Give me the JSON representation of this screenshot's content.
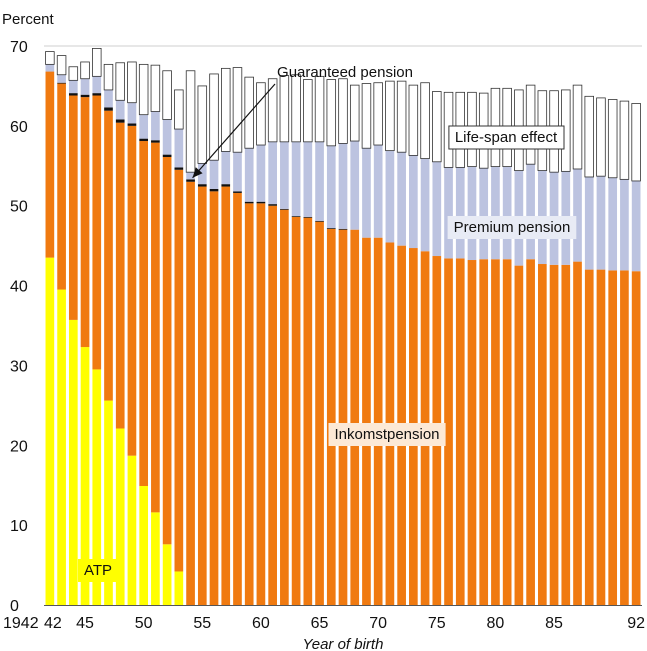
{
  "chart_data": {
    "type": "bar",
    "stacked": true,
    "ylabel": "Percent",
    "xlabel": "Year of birth",
    "ylim": [
      0,
      70
    ],
    "y_ticks": [
      0,
      10,
      20,
      30,
      40,
      50,
      60,
      70
    ],
    "x_tick_labels": [
      {
        "year": 1942,
        "label": "1942"
      },
      {
        "year": 1943,
        "label": "42"
      },
      {
        "year": 1945,
        "label": "45"
      },
      {
        "year": 1950,
        "label": "50"
      },
      {
        "year": 1955,
        "label": "55"
      },
      {
        "year": 1960,
        "label": "60"
      },
      {
        "year": 1965,
        "label": "65"
      },
      {
        "year": 1970,
        "label": "70"
      },
      {
        "year": 1975,
        "label": "75"
      },
      {
        "year": 1980,
        "label": "80"
      },
      {
        "year": 1985,
        "label": "85"
      },
      {
        "year": 1992,
        "label": "92"
      }
    ],
    "x": [
      1942,
      1943,
      1944,
      1945,
      1946,
      1947,
      1948,
      1949,
      1950,
      1951,
      1952,
      1953,
      1954,
      1955,
      1956,
      1957,
      1958,
      1959,
      1960,
      1961,
      1962,
      1963,
      1964,
      1965,
      1966,
      1967,
      1968,
      1969,
      1970,
      1971,
      1972,
      1973,
      1974,
      1975,
      1976,
      1977,
      1978,
      1979,
      1980,
      1981,
      1982,
      1983,
      1984,
      1985,
      1986,
      1987,
      1988,
      1989,
      1990,
      1991,
      1992
    ],
    "series": [
      {
        "name": "ATP",
        "color": "#ffff00",
        "values": [
          43.5,
          39.5,
          35.7,
          32.3,
          29.5,
          25.6,
          22.1,
          18.7,
          14.9,
          11.6,
          7.6,
          4.2,
          0,
          0,
          0,
          0,
          0,
          0,
          0,
          0,
          0,
          0,
          0,
          0,
          0,
          0,
          0,
          0,
          0,
          0,
          0,
          0,
          0,
          0,
          0,
          0,
          0,
          0,
          0,
          0,
          0,
          0,
          0,
          0,
          0,
          0,
          0,
          0,
          0,
          0,
          0
        ]
      },
      {
        "name": "Inkomstpension",
        "color": "#f07a10",
        "values": [
          23.3,
          25.8,
          28.1,
          31.3,
          34.3,
          36.3,
          38.3,
          41.3,
          43.2,
          46.3,
          48.5,
          50.3,
          53.0,
          52.4,
          51.8,
          52.4,
          51.6,
          50.3,
          50.3,
          50.0,
          49.5,
          48.6,
          48.5,
          48.0,
          47.1,
          47.0,
          47.0,
          46.0,
          46.0,
          45.4,
          45.0,
          44.7,
          44.3,
          43.7,
          43.4,
          43.4,
          43.2,
          43.3,
          43.3,
          43.3,
          42.5,
          43.3,
          42.7,
          42.6,
          42.6,
          43.0,
          42.0,
          42.0,
          41.9,
          41.9,
          41.8
        ]
      },
      {
        "name": "Guaranteed pension",
        "color": "#111111",
        "values": [
          0,
          0.1,
          0.3,
          0.3,
          0.3,
          0.4,
          0.4,
          0.3,
          0.3,
          0.3,
          0.3,
          0.3,
          0.3,
          0.3,
          0.3,
          0.3,
          0.2,
          0.2,
          0.2,
          0.2,
          0.1,
          0.1,
          0.1,
          0.1,
          0.1,
          0.1,
          0,
          0,
          0,
          0,
          0,
          0,
          0,
          0,
          0,
          0,
          0,
          0,
          0,
          0,
          0,
          0,
          0,
          0,
          0,
          0,
          0,
          0,
          0,
          0,
          0
        ]
      },
      {
        "name": "Premium pension",
        "color": "#bcc3e0",
        "values": [
          0.9,
          1.0,
          1.6,
          2.0,
          2.1,
          2.2,
          2.4,
          2.6,
          3.0,
          3.6,
          4.4,
          4.8,
          0.9,
          2.6,
          3.6,
          4.1,
          4.9,
          6.7,
          7.1,
          7.8,
          8.4,
          9.3,
          9.4,
          9.9,
          10.3,
          10.7,
          11.1,
          11.2,
          11.6,
          11.5,
          11.7,
          11.6,
          11.6,
          11.8,
          11.4,
          11.4,
          11.7,
          11.4,
          11.6,
          11.6,
          11.9,
          11.9,
          11.7,
          11.6,
          11.7,
          11.6,
          11.6,
          11.7,
          11.6,
          11.4,
          11.3
        ]
      },
      {
        "name": "Life-span effect",
        "color": "#ffffff",
        "values": [
          1.6,
          2.4,
          1.7,
          2.1,
          3.5,
          3.2,
          4.7,
          5.1,
          6.3,
          5.8,
          6.1,
          4.9,
          12.7,
          9.7,
          10.8,
          10.4,
          10.6,
          8.9,
          7.8,
          7.9,
          8.3,
          8.4,
          7.8,
          8.2,
          8.3,
          8.1,
          7.0,
          8.1,
          7.8,
          8.7,
          8.9,
          8.8,
          9.5,
          8.8,
          9.4,
          9.4,
          9.3,
          9.4,
          9.8,
          9.8,
          10.1,
          9.9,
          10.0,
          10.2,
          10.2,
          10.5,
          10.1,
          9.8,
          9.8,
          9.8,
          9.7
        ]
      }
    ],
    "annotations": [
      {
        "text": "Guaranteed pension",
        "arrow_to_year": 1954
      },
      {
        "text": "Life-span effect"
      },
      {
        "text": "Premium pension"
      },
      {
        "text": "Inkomstpension"
      },
      {
        "text": "ATP"
      }
    ],
    "grid": false
  },
  "colors": {
    "atp": "#ffff00",
    "inkomst": "#f07a10",
    "guaranteed": "#111111",
    "premium": "#bcc3e0",
    "lifespan": "#ffffff",
    "axis": "#555555"
  }
}
